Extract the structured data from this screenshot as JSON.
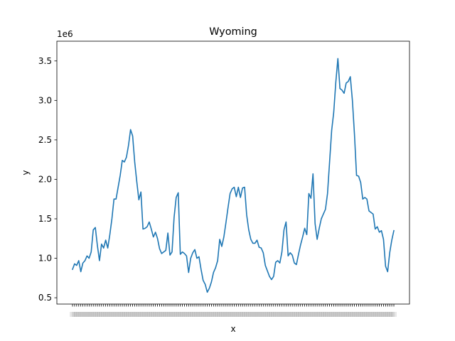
{
  "chart_data": {
    "type": "line",
    "title": "Wyoming",
    "xlabel": "x",
    "ylabel": "y",
    "y_multiplier_label": "1e6",
    "y_ticks": [
      0.5,
      1.0,
      1.5,
      2.0,
      2.5,
      3.0,
      3.5
    ],
    "y_tick_labels": [
      "0.5",
      "1.0",
      "1.5",
      "2.0",
      "2.5",
      "3.0",
      "3.5"
    ],
    "ylim": [
      0.42,
      3.75
    ],
    "x_tick_labels_note": "overlapping, illegible category tick labels",
    "series_color": "#1f77b4",
    "grid": false,
    "series": [
      {
        "values": [
          0.86,
          0.93,
          0.91,
          0.97,
          0.83,
          0.94,
          0.97,
          1.03,
          1.0,
          1.08,
          1.36,
          1.39,
          1.16,
          0.97,
          1.18,
          1.13,
          1.23,
          1.13,
          1.3,
          1.5,
          1.75,
          1.75,
          1.9,
          2.05,
          2.24,
          2.22,
          2.28,
          2.43,
          2.63,
          2.55,
          2.22,
          1.97,
          1.74,
          1.84,
          1.37,
          1.38,
          1.4,
          1.46,
          1.37,
          1.27,
          1.33,
          1.25,
          1.12,
          1.06,
          1.08,
          1.1,
          1.32,
          1.04,
          1.08,
          1.52,
          1.77,
          1.83,
          1.05,
          1.08,
          1.06,
          1.03,
          0.82,
          1.0,
          1.07,
          1.11,
          1.0,
          1.02,
          0.86,
          0.72,
          0.67,
          0.57,
          0.62,
          0.7,
          0.82,
          0.88,
          0.97,
          1.24,
          1.15,
          1.27,
          1.45,
          1.64,
          1.82,
          1.88,
          1.9,
          1.78,
          1.9,
          1.77,
          1.89,
          1.9,
          1.55,
          1.36,
          1.24,
          1.19,
          1.19,
          1.23,
          1.14,
          1.13,
          1.07,
          0.91,
          0.84,
          0.77,
          0.73,
          0.77,
          0.95,
          0.97,
          0.94,
          1.08,
          1.36,
          1.46,
          1.03,
          1.07,
          1.04,
          0.94,
          0.92,
          1.05,
          1.17,
          1.27,
          1.38,
          1.3,
          1.82,
          1.76,
          2.07,
          1.44,
          1.24,
          1.38,
          1.5,
          1.56,
          1.62,
          1.82,
          2.22,
          2.62,
          2.85,
          3.23,
          3.53,
          3.15,
          3.13,
          3.09,
          3.22,
          3.24,
          3.3,
          3.0,
          2.57,
          2.05,
          2.04,
          1.96,
          1.75,
          1.77,
          1.75,
          1.6,
          1.58,
          1.56,
          1.37,
          1.4,
          1.33,
          1.35,
          1.24,
          0.9,
          0.83,
          1.07,
          1.23,
          1.35
        ]
      }
    ]
  }
}
